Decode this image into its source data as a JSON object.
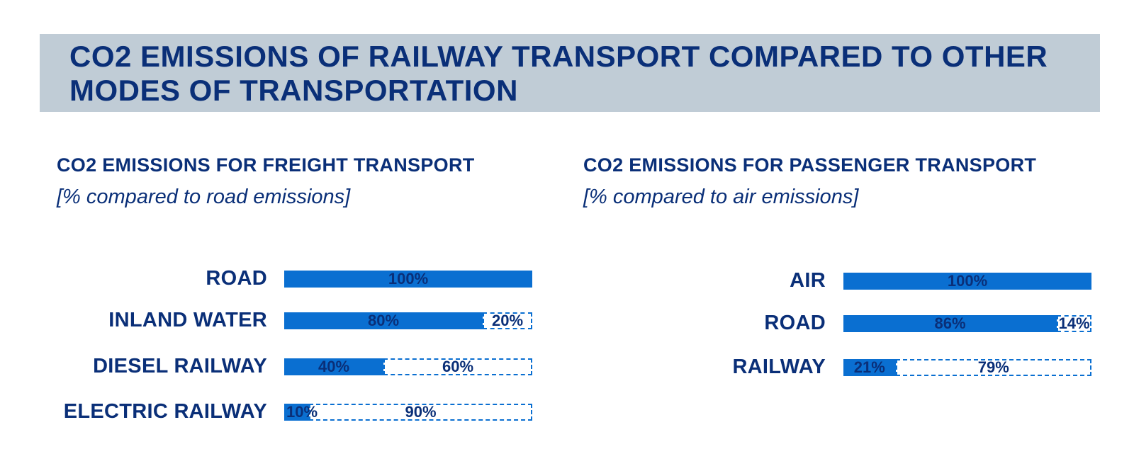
{
  "page": {
    "title": "CO2 EMISSIONS OF RAILWAY TRANSPORT COMPARED TO OTHER MODES OF TRANSPORTATION"
  },
  "colors": {
    "banner_bg": "#c0ccd6",
    "text_dark_blue": "#0a2f78",
    "bar_blue": "#0a6fd1"
  },
  "chart_data": [
    {
      "type": "bar",
      "orientation": "horizontal",
      "stacked": true,
      "title": "CO2 EMISSIONS FOR FREIGHT TRANSPORT",
      "subtitle": "[% compared to road emissions]",
      "xlim": [
        0,
        100
      ],
      "grid": false,
      "categories": [
        "ROAD",
        "INLAND WATER",
        "DIESEL RAILWAY",
        "ELECTRIC RAILWAY"
      ],
      "series": [
        {
          "values": [
            100,
            80,
            40,
            10
          ],
          "labels": [
            "100%",
            "80%",
            "40%",
            "10%"
          ],
          "style": "solid"
        },
        {
          "values": [
            0,
            20,
            60,
            90
          ],
          "labels": [
            "",
            "20%",
            "60%",
            "90%"
          ],
          "style": "dashed-outline"
        }
      ]
    },
    {
      "type": "bar",
      "orientation": "horizontal",
      "stacked": true,
      "title": "CO2 EMISSIONS FOR PASSENGER TRANSPORT",
      "subtitle": "[% compared to air emissions]",
      "xlim": [
        0,
        100
      ],
      "grid": false,
      "categories": [
        "AIR",
        "ROAD",
        "RAILWAY"
      ],
      "series": [
        {
          "values": [
            100,
            86,
            21
          ],
          "labels": [
            "100%",
            "86%",
            "21%"
          ],
          "style": "solid"
        },
        {
          "values": [
            0,
            14,
            79
          ],
          "labels": [
            "",
            "14%",
            "79%"
          ],
          "style": "dashed-outline"
        }
      ]
    }
  ]
}
